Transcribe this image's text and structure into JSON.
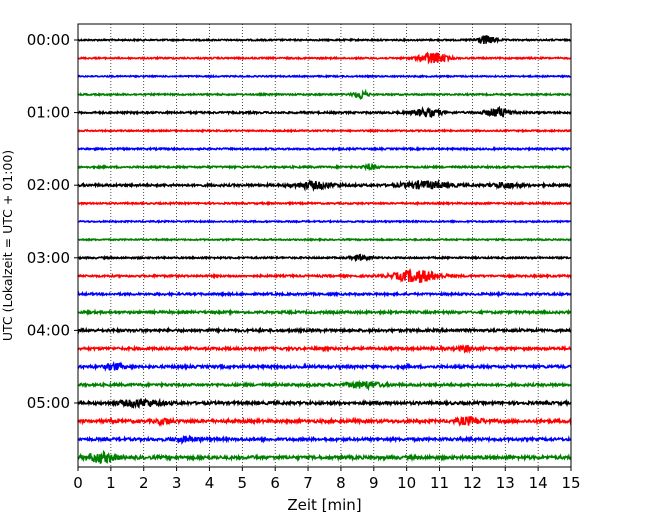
{
  "chart_data": {
    "type": "line",
    "title": "",
    "xlabel": "Zeit  [min]",
    "ylabel": "UTC (Lokalzeit = UTC + 01:00)",
    "xlim": [
      0,
      15
    ],
    "xticks": [
      0,
      1,
      2,
      3,
      4,
      5,
      6,
      7,
      8,
      9,
      10,
      11,
      12,
      13,
      14,
      15
    ],
    "yticks": [
      "00:00",
      "01:00",
      "02:00",
      "03:00",
      "04:00",
      "05:00"
    ],
    "row_interval_min": 15,
    "rows_per_hour": 4,
    "grid": "vertical dotted at each minute",
    "color_cycle": [
      "#000000",
      "#ff0000",
      "#0000ff",
      "#008000"
    ],
    "traces": [
      {
        "start": "00:00",
        "color": "#000000",
        "noise": 0.32,
        "events": [
          {
            "t": 12.4,
            "amp": 1.9,
            "dur": 0.6
          }
        ]
      },
      {
        "start": "00:15",
        "color": "#ff0000",
        "noise": 0.32,
        "events": [
          {
            "t": 10.8,
            "amp": 2.6,
            "dur": 0.8
          }
        ]
      },
      {
        "start": "00:30",
        "color": "#0000ff",
        "noise": 0.28,
        "events": []
      },
      {
        "start": "00:45",
        "color": "#008000",
        "noise": 0.32,
        "events": [
          {
            "t": 8.6,
            "amp": 2.0,
            "dur": 0.4
          }
        ]
      },
      {
        "start": "01:00",
        "color": "#000000",
        "noise": 0.4,
        "events": [
          {
            "t": 10.6,
            "amp": 1.7,
            "dur": 0.9
          },
          {
            "t": 12.8,
            "amp": 2.0,
            "dur": 0.8
          }
        ]
      },
      {
        "start": "01:15",
        "color": "#ff0000",
        "noise": 0.3,
        "events": []
      },
      {
        "start": "01:30",
        "color": "#0000ff",
        "noise": 0.36,
        "events": []
      },
      {
        "start": "01:45",
        "color": "#008000",
        "noise": 0.38,
        "events": [
          {
            "t": 8.9,
            "amp": 1.0,
            "dur": 0.4
          }
        ]
      },
      {
        "start": "02:00",
        "color": "#000000",
        "noise": 0.5,
        "events": [
          {
            "t": 7.2,
            "amp": 1.4,
            "dur": 1.2
          },
          {
            "t": 10.6,
            "amp": 1.6,
            "dur": 1.4
          },
          {
            "t": 13.0,
            "amp": 1.2,
            "dur": 0.8
          }
        ]
      },
      {
        "start": "02:15",
        "color": "#ff0000",
        "noise": 0.34,
        "events": []
      },
      {
        "start": "02:30",
        "color": "#0000ff",
        "noise": 0.3,
        "events": []
      },
      {
        "start": "02:45",
        "color": "#008000",
        "noise": 0.28,
        "events": []
      },
      {
        "start": "03:00",
        "color": "#000000",
        "noise": 0.36,
        "events": [
          {
            "t": 8.6,
            "amp": 1.1,
            "dur": 0.6
          }
        ]
      },
      {
        "start": "03:15",
        "color": "#ff0000",
        "noise": 0.42,
        "events": [
          {
            "t": 10.3,
            "amp": 2.8,
            "dur": 1.3
          }
        ]
      },
      {
        "start": "03:30",
        "color": "#0000ff",
        "noise": 0.45,
        "events": []
      },
      {
        "start": "03:45",
        "color": "#008000",
        "noise": 0.5,
        "events": []
      },
      {
        "start": "04:00",
        "color": "#000000",
        "noise": 0.56,
        "events": []
      },
      {
        "start": "04:15",
        "color": "#ff0000",
        "noise": 0.56,
        "events": [
          {
            "t": 11.8,
            "amp": 1.1,
            "dur": 0.4
          }
        ]
      },
      {
        "start": "04:30",
        "color": "#0000ff",
        "noise": 0.58,
        "events": [
          {
            "t": 1.1,
            "amp": 1.3,
            "dur": 0.5
          }
        ]
      },
      {
        "start": "04:45",
        "color": "#008000",
        "noise": 0.55,
        "events": [
          {
            "t": 8.7,
            "amp": 1.3,
            "dur": 1.0
          }
        ]
      },
      {
        "start": "05:00",
        "color": "#000000",
        "noise": 0.62,
        "events": [
          {
            "t": 1.9,
            "amp": 1.5,
            "dur": 1.2
          }
        ]
      },
      {
        "start": "05:15",
        "color": "#ff0000",
        "noise": 0.66,
        "events": [
          {
            "t": 11.9,
            "amp": 1.6,
            "dur": 0.8
          },
          {
            "t": 2.6,
            "amp": 1.0,
            "dur": 0.5
          }
        ]
      },
      {
        "start": "05:30",
        "color": "#0000ff",
        "noise": 0.6,
        "events": [
          {
            "t": 3.3,
            "amp": 1.0,
            "dur": 0.8
          }
        ]
      },
      {
        "start": "05:45",
        "color": "#008000",
        "noise": 0.7,
        "events": [
          {
            "t": 0.7,
            "amp": 2.0,
            "dur": 0.9
          }
        ]
      }
    ]
  }
}
